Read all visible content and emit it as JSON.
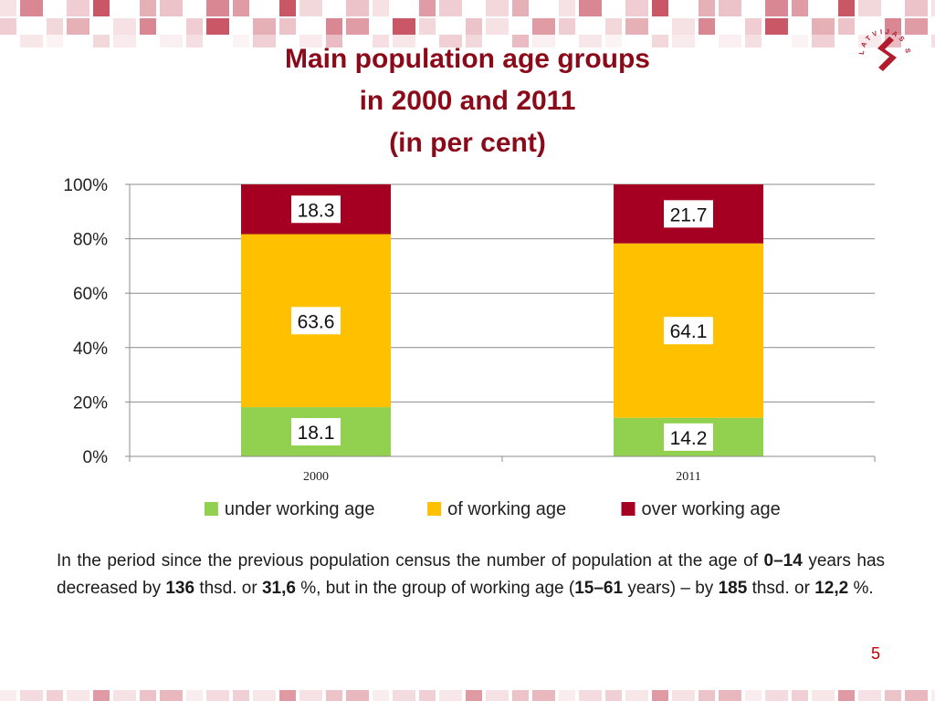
{
  "slide": {
    "title_lines": [
      "Main population age groups",
      "in 2000 and 2011",
      "(in per cent)"
    ],
    "page_number": "5",
    "logo_text": "LATVIJAS STATISTIKA",
    "colors": {
      "title": "#8b0a1a",
      "page_number": "#c00000",
      "deco": "#c0394b"
    }
  },
  "chart_data": {
    "type": "bar",
    "stacked": true,
    "categories": [
      "2000",
      "2011"
    ],
    "series": [
      {
        "name": "under working age",
        "values": [
          18.1,
          14.2
        ],
        "color": "#92d050"
      },
      {
        "name": "of working age",
        "values": [
          63.6,
          64.1
        ],
        "color": "#ffc000"
      },
      {
        "name": "over working age",
        "values": [
          18.3,
          21.7
        ],
        "color": "#a50021"
      }
    ],
    "data_labels": [
      [
        "18.1",
        "14.2"
      ],
      [
        "63.6",
        "64.1"
      ],
      [
        "18.3",
        "21.7"
      ]
    ],
    "y_ticks": [
      "0%",
      "20%",
      "40%",
      "60%",
      "80%",
      "100%"
    ],
    "ylim": [
      0,
      100
    ],
    "grid": true,
    "legend_position": "bottom"
  },
  "text": {
    "p1": "In the period since the previous population census the number of population at the age of ",
    "b1": "0–14",
    "p2": " years has decreased by ",
    "b2": "136",
    "p3": " thsd. or ",
    "b3": "31,6",
    "p4": " %, but in the group of working age (",
    "b4": "15–61",
    "p5": " years) – by ",
    "b5": "185",
    "p6": " thsd. or ",
    "b6": "12,2",
    "p7": " %."
  }
}
